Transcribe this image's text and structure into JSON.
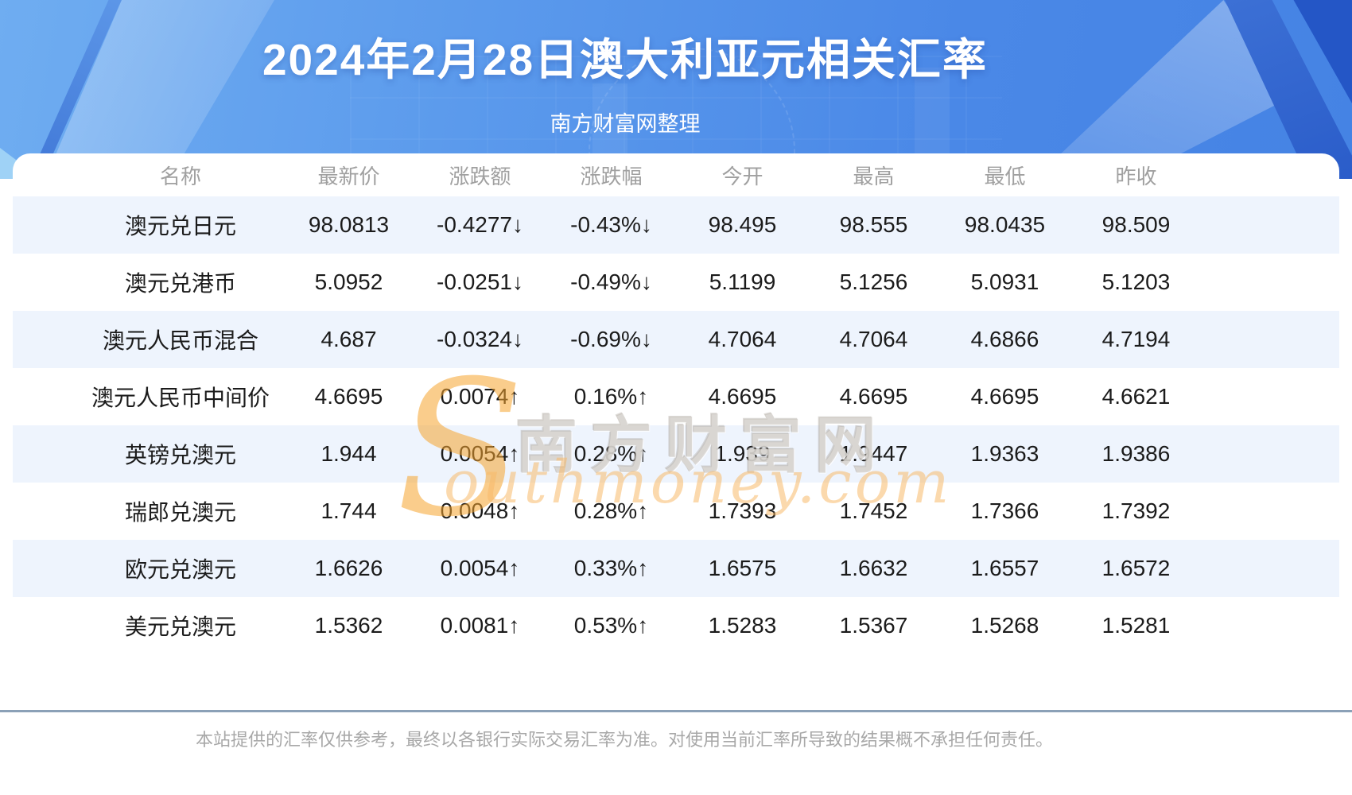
{
  "page": {
    "title": "2024年2月28日澳大利亚元相关汇率",
    "subtitle": "南方财富网整理",
    "disclaimer": "本站提供的汇率仅供参考，最终以各银行实际交易汇率为准。对使用当前汇率所导致的结果概不承担任何责任。"
  },
  "watermark": {
    "initial": "S",
    "cjk": "南方财富网",
    "latin": "outhmoney.com"
  },
  "colors": {
    "up": "#fe0000",
    "down": "#0a9b10",
    "header_text": "#a0a0a0",
    "row_alt": "#eef4fd",
    "divider": "#8ba1b7"
  },
  "chart_data": {
    "type": "table",
    "title": "2024年2月28日澳大利亚元相关汇率",
    "subtitle": "南方财富网整理",
    "columns": [
      "名称",
      "最新价",
      "涨跌额",
      "涨跌幅",
      "今开",
      "最高",
      "最低",
      "昨收"
    ],
    "rows": [
      {
        "name": "澳元兑日元",
        "last": "98.0813",
        "change": "-0.4277↓",
        "change_pct": "-0.43%↓",
        "open": "98.495",
        "high": "98.555",
        "low": "98.0435",
        "prev": "98.509",
        "trend": "down"
      },
      {
        "name": "澳元兑港币",
        "last": "5.0952",
        "change": "-0.0251↓",
        "change_pct": "-0.49%↓",
        "open": "5.1199",
        "high": "5.1256",
        "low": "5.0931",
        "prev": "5.1203",
        "trend": "down"
      },
      {
        "name": "澳元人民币混合",
        "last": "4.687",
        "change": "-0.0324↓",
        "change_pct": "-0.69%↓",
        "open": "4.7064",
        "high": "4.7064",
        "low": "4.6866",
        "prev": "4.7194",
        "trend": "down"
      },
      {
        "name": "澳元人民币中间价",
        "last": "4.6695",
        "change": "0.0074↑",
        "change_pct": "0.16%↑",
        "open": "4.6695",
        "high": "4.6695",
        "low": "4.6695",
        "prev": "4.6621",
        "trend": "up"
      },
      {
        "name": "英镑兑澳元",
        "last": "1.944",
        "change": "0.0054↑",
        "change_pct": "0.28%↑",
        "open": "1.939",
        "high": "1.9447",
        "low": "1.9363",
        "prev": "1.9386",
        "trend": "up"
      },
      {
        "name": "瑞郎兑澳元",
        "last": "1.744",
        "change": "0.0048↑",
        "change_pct": "0.28%↑",
        "open": "1.7393",
        "high": "1.7452",
        "low": "1.7366",
        "prev": "1.7392",
        "trend": "up"
      },
      {
        "name": "欧元兑澳元",
        "last": "1.6626",
        "change": "0.0054↑",
        "change_pct": "0.33%↑",
        "open": "1.6575",
        "high": "1.6632",
        "low": "1.6557",
        "prev": "1.6572",
        "trend": "up"
      },
      {
        "name": "美元兑澳元",
        "last": "1.5362",
        "change": "0.0081↑",
        "change_pct": "0.53%↑",
        "open": "1.5283",
        "high": "1.5367",
        "low": "1.5268",
        "prev": "1.5281",
        "trend": "up"
      }
    ]
  }
}
